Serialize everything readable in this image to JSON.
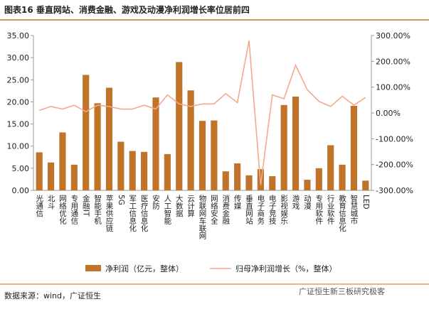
{
  "chart_data": {
    "type": "bar-line",
    "title": "图表16 垂直网站、消费金融、游戏及动漫净利润增长率位居前四",
    "categories": [
      "光通信",
      "北斗",
      "网络优化",
      "专用通信",
      "金融IT",
      "智能手机",
      "苹果供应链",
      "5G",
      "军工信息化",
      "医疗信息化",
      "安防",
      "人工智能",
      "大数据",
      "云计算",
      "物联网车联网",
      "网络安全",
      "消费金融",
      "传媒",
      "垂直网站",
      "电子商务",
      "电子竞技",
      "影视娱乐",
      "游戏",
      "动漫",
      "专用软件",
      "行业软件",
      "教育信息化",
      "智慧城市",
      "LED"
    ],
    "series": [
      {
        "name": "净利润（亿元，整体）",
        "color": "#c0742a",
        "values": [
          8.6,
          6.3,
          13.1,
          5.8,
          26.1,
          19.7,
          23.2,
          11.0,
          8.9,
          8.7,
          21.0,
          8.2,
          29.0,
          22.6,
          15.7,
          15.8,
          4.3,
          6.1,
          3.4,
          4.8,
          3.2,
          19.3,
          21.2,
          2.4,
          5.0,
          10.2,
          5.8,
          19.1,
          2.2
        ]
      },
      {
        "name": "归母净利润增长（%，整体）",
        "color": "#f4a98a",
        "axis": "y2",
        "values": [
          10,
          25,
          15,
          30,
          5,
          30,
          25,
          15,
          15,
          30,
          15,
          70,
          35,
          25,
          35,
          35,
          75,
          40,
          280,
          -280,
          70,
          55,
          185,
          90,
          45,
          25,
          65,
          30,
          60
        ]
      }
    ],
    "ylim": [
      0,
      35
    ],
    "yticks": [
      {
        "value": 0,
        "label": "0.00"
      },
      {
        "value": 5,
        "label": "5.00"
      },
      {
        "value": 10,
        "label": "10.00"
      },
      {
        "value": 15,
        "label": "15.00"
      },
      {
        "value": 20,
        "label": "20.00"
      },
      {
        "value": 25,
        "label": "25.00"
      },
      {
        "value": 30,
        "label": "30.00"
      },
      {
        "value": 35,
        "label": "35.00"
      }
    ],
    "y2lim": [
      -300,
      300
    ],
    "y2ticks": [
      {
        "value": -300,
        "label": "-300.00%"
      },
      {
        "value": -200,
        "label": "-200.00%"
      },
      {
        "value": -100,
        "label": "-100.00%"
      },
      {
        "value": 0,
        "label": "0.00%"
      },
      {
        "value": 100,
        "label": "100.00%"
      },
      {
        "value": 200,
        "label": "200.00%"
      },
      {
        "value": 300,
        "label": "300.00%"
      }
    ],
    "source": "数据来源：wind，广证恒生",
    "watermark": "广证恒生新三板研究极客"
  }
}
